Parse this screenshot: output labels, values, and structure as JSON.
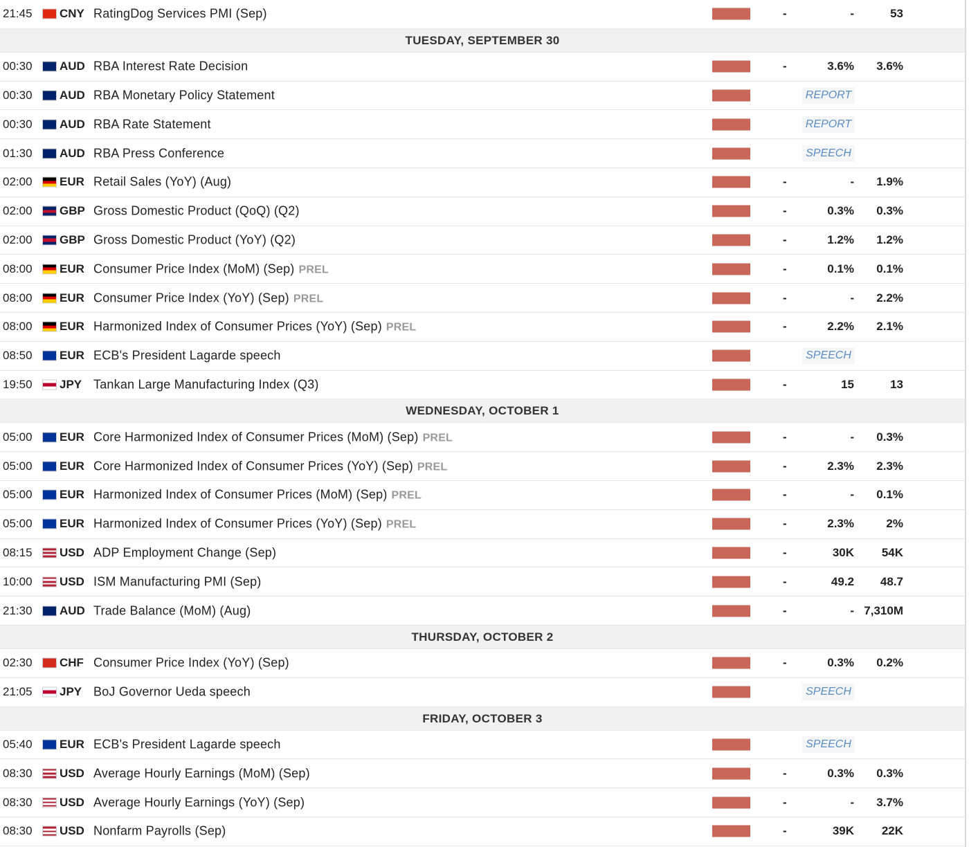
{
  "rows": [
    {
      "time": "21:45",
      "flag": [
        "#de2910"
      ],
      "currency": "CNY",
      "event": "RatingDog Services PMI (Sep)",
      "actual": "-",
      "consensus": "-",
      "previous": 53
    },
    {
      "header": "TUESDAY, SEPTEMBER 30"
    },
    {
      "time": "00:30",
      "flag": [
        "#012169",
        "#012169"
      ],
      "currency": "AUD",
      "event": "RBA Interest Rate Decision",
      "actual": "-",
      "consensus": "3.6%",
      "previous": "3.6%"
    },
    {
      "time": "00:30",
      "flag": [
        "#012169",
        "#012169"
      ],
      "currency": "AUD",
      "event": "RBA Monetary Policy Statement",
      "label": "REPORT"
    },
    {
      "time": "00:30",
      "flag": [
        "#012169",
        "#012169"
      ],
      "currency": "AUD",
      "event": "RBA Rate Statement",
      "label": "REPORT"
    },
    {
      "time": "01:30",
      "flag": [
        "#012169",
        "#012169"
      ],
      "currency": "AUD",
      "event": "RBA Press Conference",
      "label": "SPEECH"
    },
    {
      "time": "02:00",
      "flag": [
        "#000000",
        "#dd0000",
        "#ffce00"
      ],
      "currency": "EUR",
      "event": "Retail Sales (YoY) (Aug)",
      "actual": "-",
      "consensus": "-",
      "previous": "1.9%"
    },
    {
      "time": "02:00",
      "flag": [
        "#012169",
        "#c8102e",
        "#012169"
      ],
      "currency": "GBP",
      "event": "Gross Domestic Product (QoQ) (Q2)",
      "actual": "-",
      "consensus": "0.3%",
      "previous": "0.3%"
    },
    {
      "time": "02:00",
      "flag": [
        "#012169",
        "#c8102e",
        "#012169"
      ],
      "currency": "GBP",
      "event": "Gross Domestic Product (YoY) (Q2)",
      "actual": "-",
      "consensus": "1.2%",
      "previous": "1.2%"
    },
    {
      "time": "08:00",
      "flag": [
        "#000000",
        "#dd0000",
        "#ffce00"
      ],
      "currency": "EUR",
      "event": "Consumer Price Index (MoM) (Sep)",
      "tag": "PREL",
      "actual": "-",
      "consensus": "0.1%",
      "previous": "0.1%"
    },
    {
      "time": "08:00",
      "flag": [
        "#000000",
        "#dd0000",
        "#ffce00"
      ],
      "currency": "EUR",
      "event": "Consumer Price Index (YoY) (Sep)",
      "tag": "PREL",
      "actual": "-",
      "consensus": "-",
      "previous": "2.2%"
    },
    {
      "time": "08:00",
      "flag": [
        "#000000",
        "#dd0000",
        "#ffce00"
      ],
      "currency": "EUR",
      "event": "Harmonized Index of Consumer Prices (YoY) (Sep)",
      "tag": "PREL",
      "actual": "-",
      "consensus": "2.2%",
      "previous": "2.1%"
    },
    {
      "time": "08:50",
      "flag": [
        "#003399"
      ],
      "currency": "EUR",
      "event": "ECB's President Lagarde speech",
      "label": "SPEECH"
    },
    {
      "time": "19:50",
      "flag": [
        "#ffffff",
        "#bc002d",
        "#ffffff"
      ],
      "currency": "JPY",
      "event": "Tankan Large Manufacturing Index (Q3)",
      "actual": "-",
      "consensus": 15,
      "previous": 13
    },
    {
      "header": "WEDNESDAY, OCTOBER 1"
    },
    {
      "time": "05:00",
      "flag": [
        "#003399"
      ],
      "currency": "EUR",
      "event": "Core Harmonized Index of Consumer Prices (MoM) (Sep)",
      "tag": "PREL",
      "actual": "-",
      "consensus": "-",
      "previous": "0.3%"
    },
    {
      "time": "05:00",
      "flag": [
        "#003399"
      ],
      "currency": "EUR",
      "event": "Core Harmonized Index of Consumer Prices (YoY) (Sep)",
      "tag": "PREL",
      "actual": "-",
      "consensus": "2.3%",
      "previous": "2.3%"
    },
    {
      "time": "05:00",
      "flag": [
        "#003399"
      ],
      "currency": "EUR",
      "event": "Harmonized Index of Consumer Prices (MoM) (Sep)",
      "tag": "PREL",
      "actual": "-",
      "consensus": "-",
      "previous": "0.1%"
    },
    {
      "time": "05:00",
      "flag": [
        "#003399"
      ],
      "currency": "EUR",
      "event": "Harmonized Index of Consumer Prices (YoY) (Sep)",
      "tag": "PREL",
      "actual": "-",
      "consensus": "2.3%",
      "previous": "2%"
    },
    {
      "time": "08:15",
      "flag": [
        "#b22234",
        "#ffffff",
        "#b22234",
        "#ffffff",
        "#b22234"
      ],
      "currency": "USD",
      "event": "ADP Employment Change (Sep)",
      "actual": "-",
      "consensus": "30K",
      "previous": "54K"
    },
    {
      "time": "10:00",
      "flag": [
        "#b22234",
        "#ffffff",
        "#b22234",
        "#ffffff",
        "#b22234"
      ],
      "currency": "USD",
      "event": "ISM Manufacturing PMI (Sep)",
      "actual": "-",
      "consensus": 49.2,
      "previous": 48.7
    },
    {
      "time": "21:30",
      "flag": [
        "#012169",
        "#012169"
      ],
      "currency": "AUD",
      "event": "Trade Balance (MoM) (Aug)",
      "actual": "-",
      "consensus": "-",
      "previous": "7,310M"
    },
    {
      "header": "THURSDAY, OCTOBER 2"
    },
    {
      "time": "02:30",
      "flag": [
        "#d52b1e"
      ],
      "currency": "CHF",
      "event": "Consumer Price Index (YoY) (Sep)",
      "actual": "-",
      "consensus": "0.3%",
      "previous": "0.2%"
    },
    {
      "time": "21:05",
      "flag": [
        "#ffffff",
        "#bc002d",
        "#ffffff"
      ],
      "currency": "JPY",
      "event": "BoJ Governor Ueda speech",
      "label": "SPEECH"
    },
    {
      "header": "FRIDAY, OCTOBER 3"
    },
    {
      "time": "05:40",
      "flag": [
        "#003399"
      ],
      "currency": "EUR",
      "event": "ECB's President Lagarde speech",
      "label": "SPEECH"
    },
    {
      "time": "08:30",
      "flag": [
        "#b22234",
        "#ffffff",
        "#b22234",
        "#ffffff",
        "#b22234"
      ],
      "currency": "USD",
      "event": "Average Hourly Earnings (MoM) (Sep)",
      "actual": "-",
      "consensus": "0.3%",
      "previous": "0.3%"
    },
    {
      "time": "08:30",
      "flag": [
        "#b22234",
        "#ffffff",
        "#b22234",
        "#ffffff",
        "#b22234"
      ],
      "currency": "USD",
      "event": "Average Hourly Earnings (YoY) (Sep)",
      "actual": "-",
      "consensus": "-",
      "previous": "3.7%"
    },
    {
      "time": "08:30",
      "flag": [
        "#b22234",
        "#ffffff",
        "#b22234",
        "#ffffff",
        "#b22234"
      ],
      "currency": "USD",
      "event": "Nonfarm Payrolls (Sep)",
      "actual": "-",
      "consensus": "39K",
      "previous": "22K"
    }
  ]
}
